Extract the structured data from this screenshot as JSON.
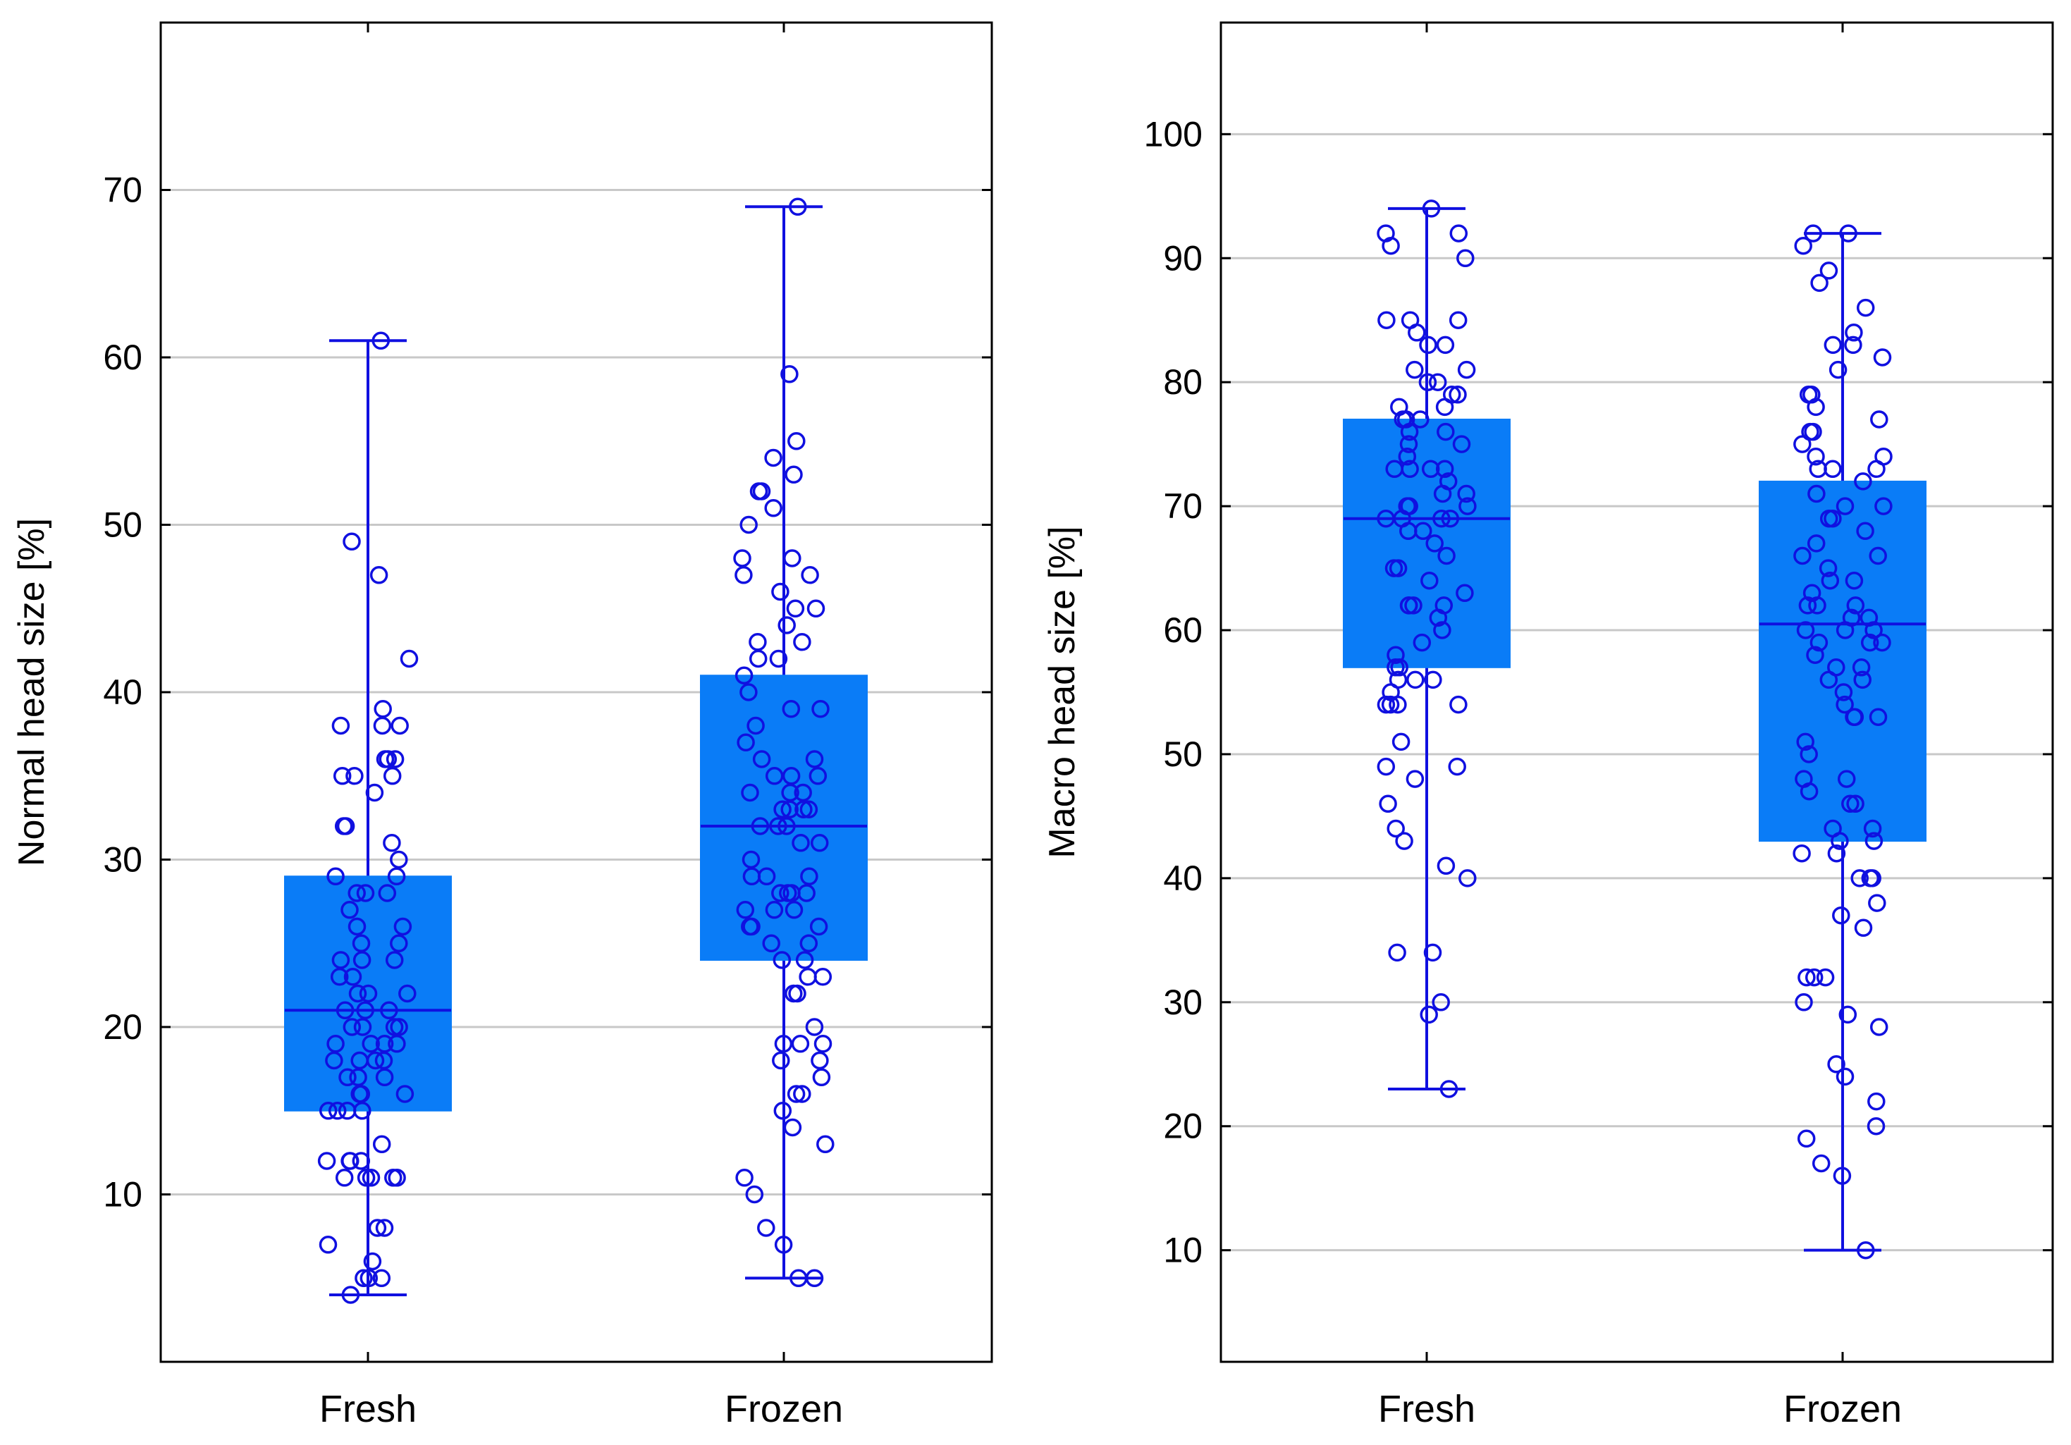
{
  "colors": {
    "box_fill": "#0a7cf7",
    "line": "#1010e0",
    "grid": "#c8c8c8",
    "frame": "#000000",
    "text": "#000000"
  },
  "chart_data": [
    {
      "type": "box",
      "title": "",
      "xlabel": "",
      "ylabel": "Normal head size [%]",
      "ylim": [
        0,
        80
      ],
      "yticks": [
        10,
        20,
        30,
        40,
        50,
        60,
        70
      ],
      "grid": true,
      "categories": [
        "Fresh",
        "Frozen"
      ],
      "series": [
        {
          "name": "Fresh",
          "whisker_low": 4,
          "q1": 15,
          "median": 21,
          "q3": 29,
          "whisker_high": 61,
          "points": [
            61,
            49,
            47,
            42,
            39,
            38,
            38,
            38,
            36,
            36,
            36,
            35,
            35,
            35,
            34,
            32,
            32,
            31,
            30,
            29,
            29,
            28,
            28,
            28,
            27,
            26,
            26,
            25,
            25,
            24,
            24,
            24,
            23,
            23,
            22,
            22,
            22,
            21,
            21,
            21,
            20,
            20,
            20,
            20,
            19,
            19,
            19,
            19,
            18,
            18,
            18,
            18,
            17,
            17,
            17,
            16,
            16,
            16,
            15,
            15,
            15,
            15,
            13,
            12,
            12,
            12,
            12,
            11,
            11,
            11,
            11,
            11,
            8,
            8,
            7,
            6,
            5,
            5,
            5,
            4
          ]
        },
        {
          "name": "Frozen",
          "whisker_low": 5,
          "q1": 24,
          "median": 32,
          "q3": 41,
          "whisker_high": 69,
          "points": [
            69,
            59,
            55,
            54,
            53,
            52,
            52,
            51,
            50,
            48,
            48,
            47,
            47,
            46,
            45,
            45,
            44,
            43,
            43,
            42,
            42,
            41,
            40,
            39,
            39,
            38,
            37,
            36,
            36,
            35,
            35,
            35,
            34,
            34,
            34,
            33,
            33,
            33,
            33,
            32,
            32,
            32,
            31,
            31,
            30,
            29,
            29,
            29,
            28,
            28,
            28,
            28,
            27,
            27,
            27,
            26,
            26,
            26,
            25,
            25,
            24,
            24,
            23,
            23,
            22,
            22,
            20,
            19,
            19,
            19,
            18,
            18,
            17,
            16,
            16,
            15,
            14,
            13,
            11,
            10,
            8,
            7,
            5,
            5
          ]
        }
      ]
    },
    {
      "type": "box",
      "title": "",
      "xlabel": "",
      "ylabel": "Macro head size [%]",
      "ylim": [
        1,
        109
      ],
      "yticks": [
        10,
        20,
        30,
        40,
        50,
        60,
        70,
        80,
        90,
        100
      ],
      "grid": true,
      "categories": [
        "Fresh",
        "Frozen"
      ],
      "series": [
        {
          "name": "Fresh",
          "whisker_low": 23,
          "q1": 57,
          "median": 69,
          "q3": 77,
          "whisker_high": 94,
          "points": [
            94,
            92,
            92,
            91,
            90,
            85,
            85,
            85,
            84,
            83,
            83,
            81,
            81,
            80,
            80,
            79,
            79,
            78,
            78,
            77,
            77,
            77,
            76,
            76,
            75,
            75,
            74,
            73,
            73,
            73,
            73,
            72,
            71,
            71,
            70,
            70,
            70,
            69,
            69,
            69,
            69,
            68,
            68,
            67,
            66,
            65,
            65,
            64,
            63,
            62,
            62,
            62,
            62,
            61,
            60,
            59,
            58,
            57,
            57,
            56,
            56,
            56,
            55,
            54,
            54,
            54,
            54,
            51,
            49,
            49,
            48,
            46,
            44,
            43,
            41,
            40,
            34,
            34,
            30,
            29,
            23
          ]
        },
        {
          "name": "Frozen",
          "whisker_low": 10,
          "q1": 43,
          "median": 60.5,
          "q3": 72,
          "whisker_high": 92,
          "points": [
            92,
            92,
            91,
            89,
            88,
            86,
            84,
            83,
            83,
            82,
            81,
            79,
            79,
            78,
            77,
            76,
            76,
            75,
            74,
            74,
            73,
            73,
            73,
            72,
            71,
            70,
            70,
            69,
            69,
            68,
            67,
            66,
            66,
            65,
            64,
            64,
            63,
            62,
            62,
            62,
            61,
            61,
            60,
            60,
            60,
            59,
            59,
            59,
            58,
            57,
            57,
            56,
            56,
            55,
            54,
            53,
            53,
            53,
            51,
            50,
            48,
            48,
            47,
            46,
            46,
            44,
            44,
            43,
            43,
            42,
            42,
            40,
            40,
            40,
            38,
            37,
            36,
            32,
            32,
            32,
            30,
            29,
            28,
            25,
            24,
            22,
            20,
            19,
            17,
            16,
            10
          ]
        }
      ]
    }
  ]
}
